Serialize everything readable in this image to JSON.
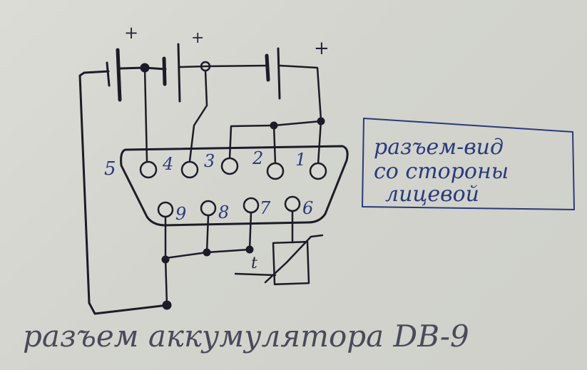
{
  "diagram": {
    "plus_signs": [
      "+",
      "+",
      "+"
    ],
    "top_pins": [
      "5",
      "4",
      "3",
      "2",
      "1"
    ],
    "bottom_pins": [
      "9",
      "8",
      "7",
      "6"
    ],
    "relay_mark": "t",
    "note_lines": [
      "разъем-вид",
      "со стороны",
      "лицевой"
    ],
    "caption": "разъем аккумулятора DB-9"
  }
}
